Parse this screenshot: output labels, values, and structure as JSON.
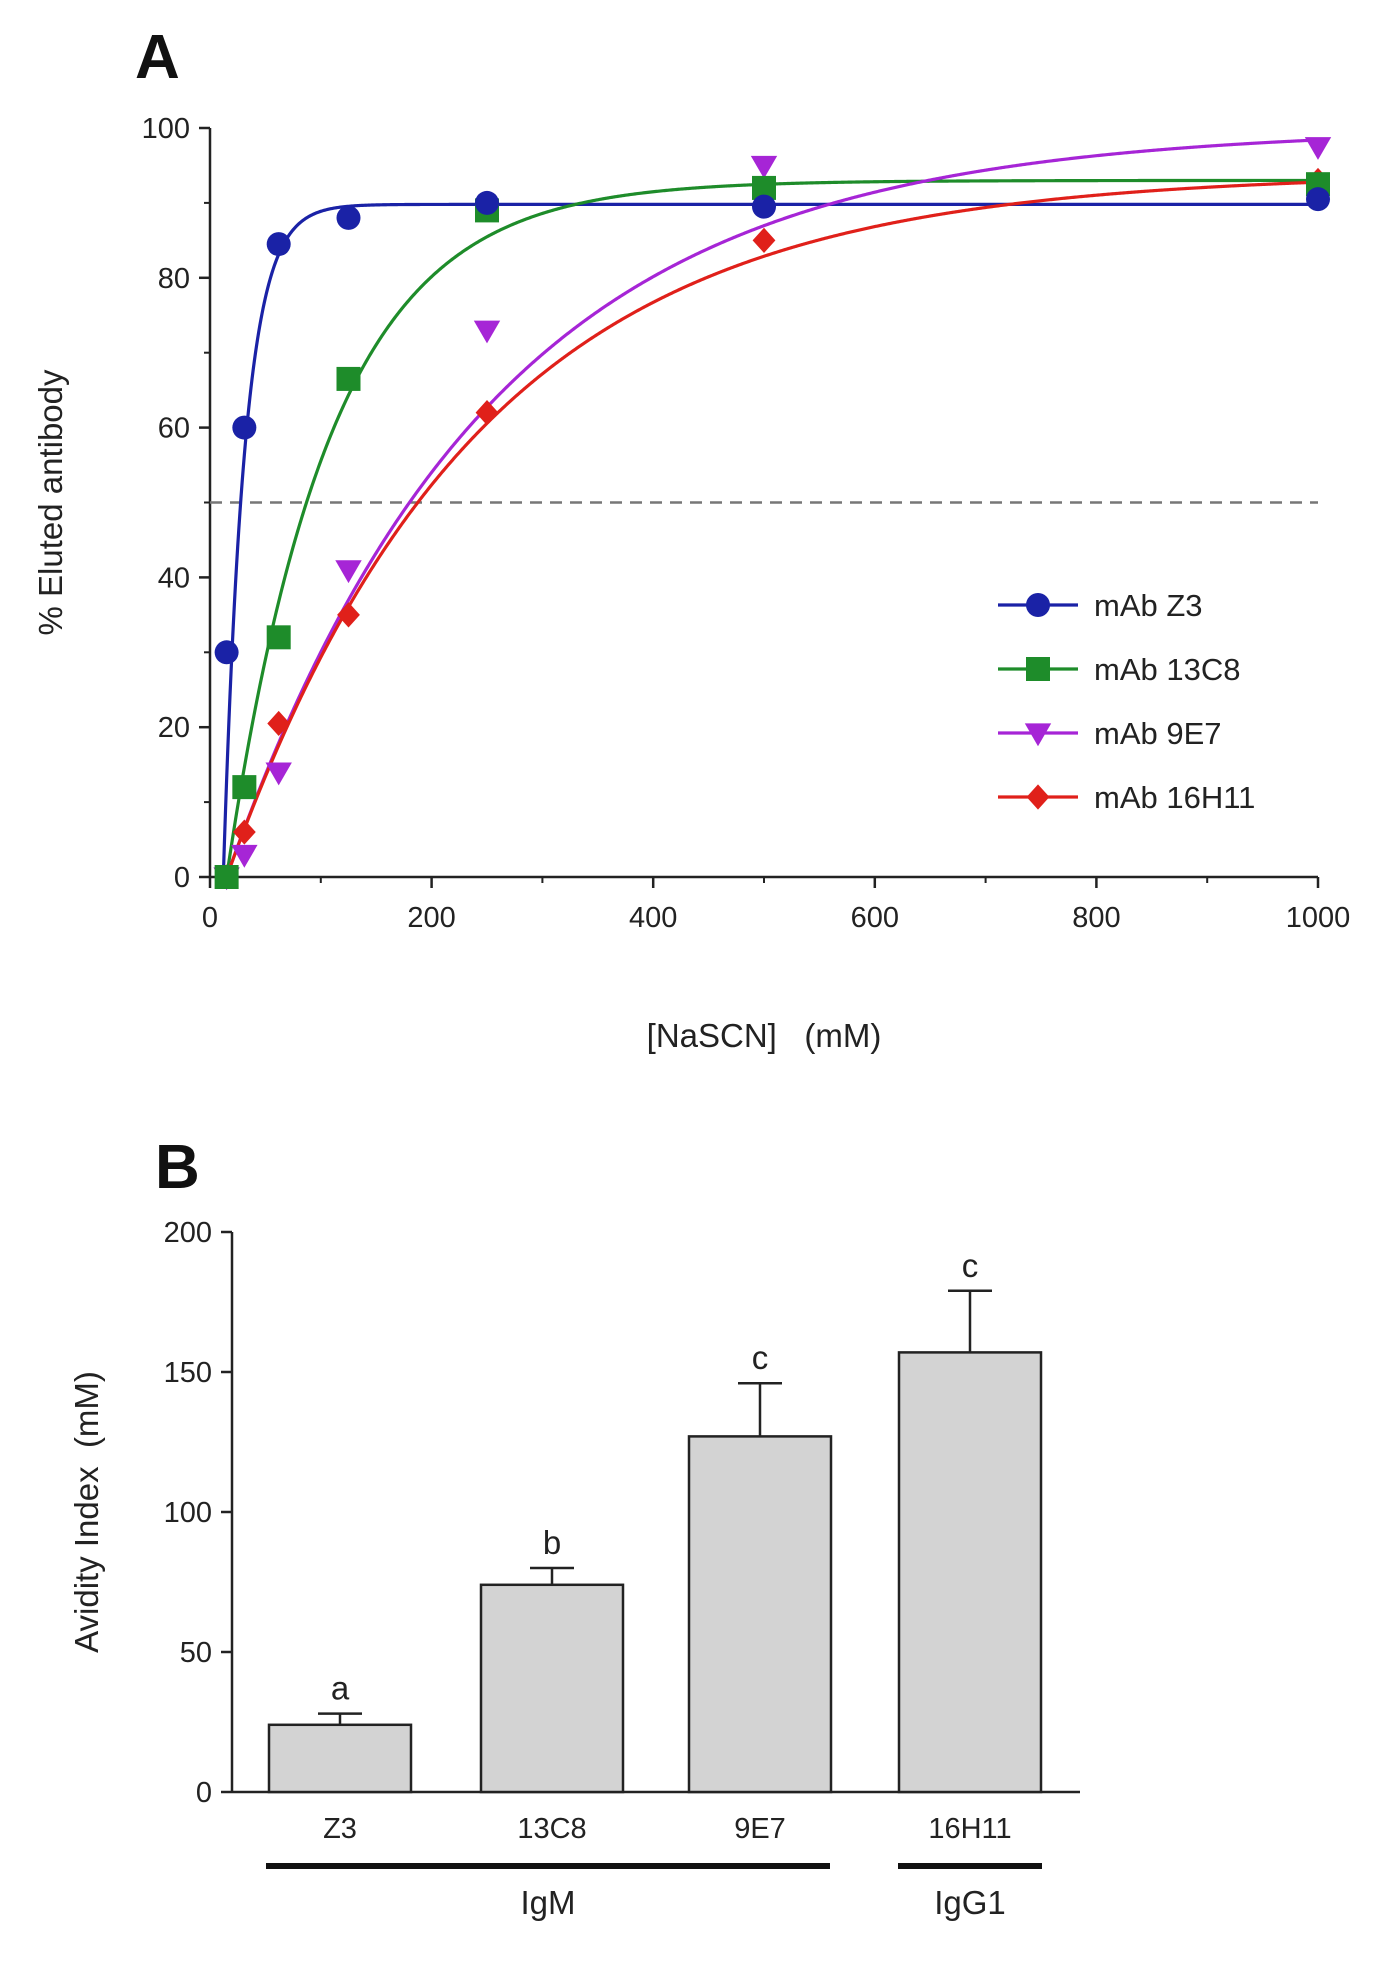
{
  "chart_data": [
    {
      "panel": "A",
      "type": "scatter",
      "xlabel": "[NaSCN]   (mM)",
      "ylabel": "% Eluted antibody",
      "xlim": [
        0,
        1000
      ],
      "ylim": [
        0,
        100
      ],
      "xticks": [
        0,
        200,
        400,
        600,
        800,
        1000
      ],
      "yticks": [
        0,
        20,
        40,
        60,
        80,
        100
      ],
      "grid": false,
      "legend_position": "center-right",
      "reference_line": {
        "y": 50,
        "style": "dashed"
      },
      "series": [
        {
          "name": "mAb Z3",
          "color": "#1a22a6",
          "marker": "circle",
          "x": [
            15,
            31,
            62,
            125,
            250,
            500,
            1000
          ],
          "y": [
            30,
            60,
            84.5,
            88,
            90,
            89.5,
            90.5
          ],
          "fit": {
            "model": "one-phase association",
            "plateau": 89.8,
            "k": 0.052,
            "x0": 12
          }
        },
        {
          "name": "mAb 13C8",
          "color": "#1e8c2a",
          "marker": "square",
          "x": [
            15,
            31,
            62,
            125,
            250,
            500,
            1000
          ],
          "y": [
            0,
            12,
            32,
            66.5,
            89,
            92,
            92.5
          ],
          "fit": {
            "model": "one-phase association",
            "plateau": 93,
            "k": 0.0107,
            "x0": 15
          }
        },
        {
          "name": "mAb 9E7",
          "color": "#a625d6",
          "marker": "triangle-down",
          "x": [
            15,
            31,
            62,
            125,
            250,
            500,
            1000
          ],
          "y": [
            0,
            3,
            14,
            41,
            73,
            95,
            97.5
          ],
          "fit": {
            "model": "one-phase association",
            "plateau": 100,
            "k": 0.0042,
            "x0": 15
          }
        },
        {
          "name": "mAb 16H11",
          "color": "#e0201a",
          "marker": "diamond",
          "x": [
            15,
            31,
            62,
            125,
            250,
            500,
            1000
          ],
          "y": [
            0,
            6,
            20.5,
            35,
            62,
            85,
            93
          ],
          "fit": {
            "model": "one-phase association",
            "plateau": 94,
            "k": 0.0044,
            "x0": 15
          }
        }
      ]
    },
    {
      "panel": "B",
      "type": "bar",
      "ylabel": "Avidity Index  (mM)",
      "ylim": [
        0,
        200
      ],
      "yticks": [
        0,
        50,
        100,
        150,
        200
      ],
      "categories": [
        "Z3",
        "13C8",
        "9E7",
        "16H11"
      ],
      "values": [
        24,
        74,
        127,
        157
      ],
      "errors": [
        4,
        6,
        19,
        22
      ],
      "significance": [
        "a",
        "b",
        "c",
        "c"
      ],
      "bar_color": "#d3d3d3",
      "groups": [
        {
          "label": "IgM",
          "members": [
            "Z3",
            "13C8",
            "9E7"
          ]
        },
        {
          "label": "IgG1",
          "members": [
            "16H11"
          ]
        }
      ]
    }
  ],
  "panels": {
    "a_label": "A",
    "b_label": "B"
  }
}
